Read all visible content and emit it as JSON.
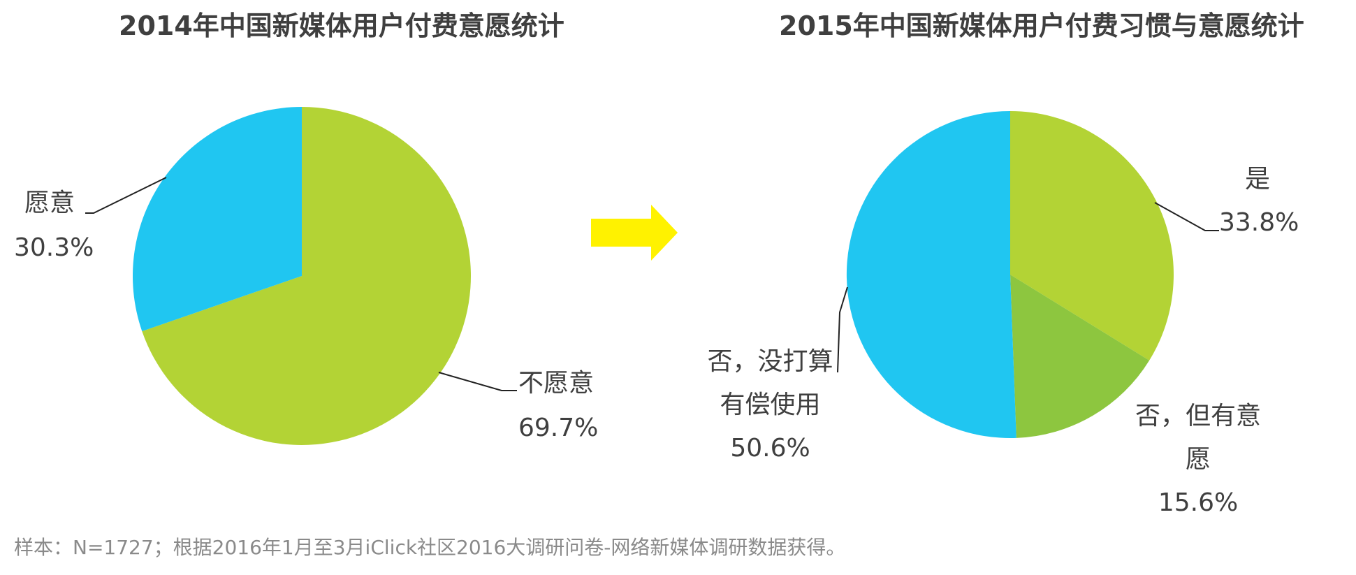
{
  "chart_data": [
    {
      "type": "pie",
      "title": "2014年中国新媒体用户付费意愿统计",
      "slices": [
        {
          "label": "不愿意",
          "value": 69.7,
          "value_label": "69.7%",
          "color": "#b3d335"
        },
        {
          "label": "愿意",
          "value": 30.3,
          "value_label": "30.3%",
          "color": "#20c6f1"
        }
      ]
    },
    {
      "type": "pie",
      "title": "2015年中国新媒体用户付费习惯与意愿统计",
      "slices": [
        {
          "label": "是",
          "value": 33.8,
          "value_label": "33.8%",
          "color": "#b3d335"
        },
        {
          "label": "否，但有意愿",
          "label_lines": [
            "否，但有意",
            "愿"
          ],
          "value": 15.6,
          "value_label": "15.6%",
          "color": "#8dc63f"
        },
        {
          "label": "否，没打算有偿使用",
          "label_lines": [
            "否，没打算",
            "有偿使用"
          ],
          "value": 50.6,
          "value_label": "50.6%",
          "color": "#20c6f1"
        }
      ]
    }
  ],
  "arrow_color": "#fff200",
  "footnote": "样本：N=1727；根据2016年1月至3月iClick社区2016大调研问卷-网络新媒体调研数据获得。"
}
